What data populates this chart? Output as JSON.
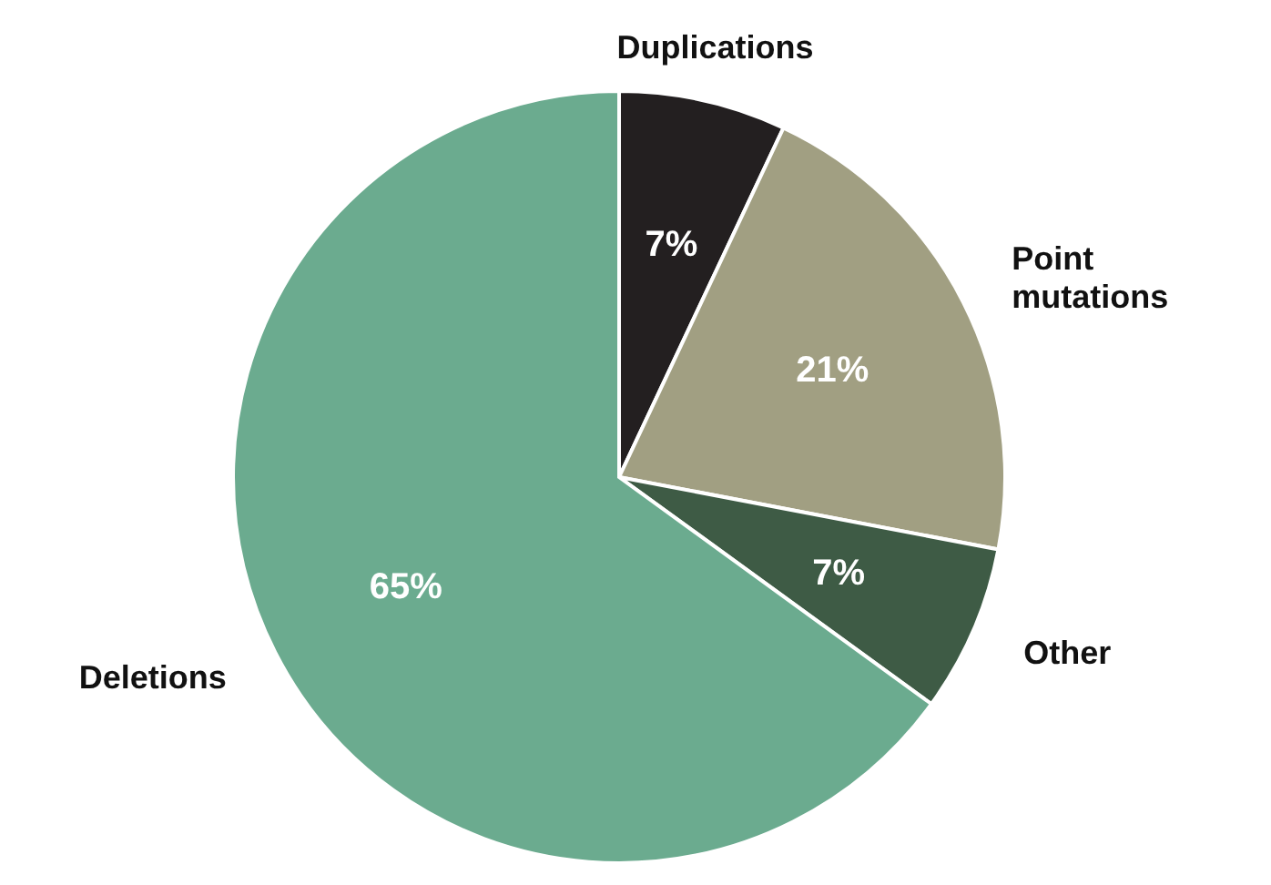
{
  "chart_data": {
    "type": "pie",
    "categories": [
      "Duplications",
      "Point mutations",
      "Other",
      "Deletions"
    ],
    "values": [
      7,
      21,
      7,
      65
    ],
    "colors": [
      "#231f20",
      "#a19f82",
      "#3e5b45",
      "#6bab8f"
    ],
    "value_labels": [
      "7%",
      "21%",
      "7%",
      "65%"
    ]
  }
}
